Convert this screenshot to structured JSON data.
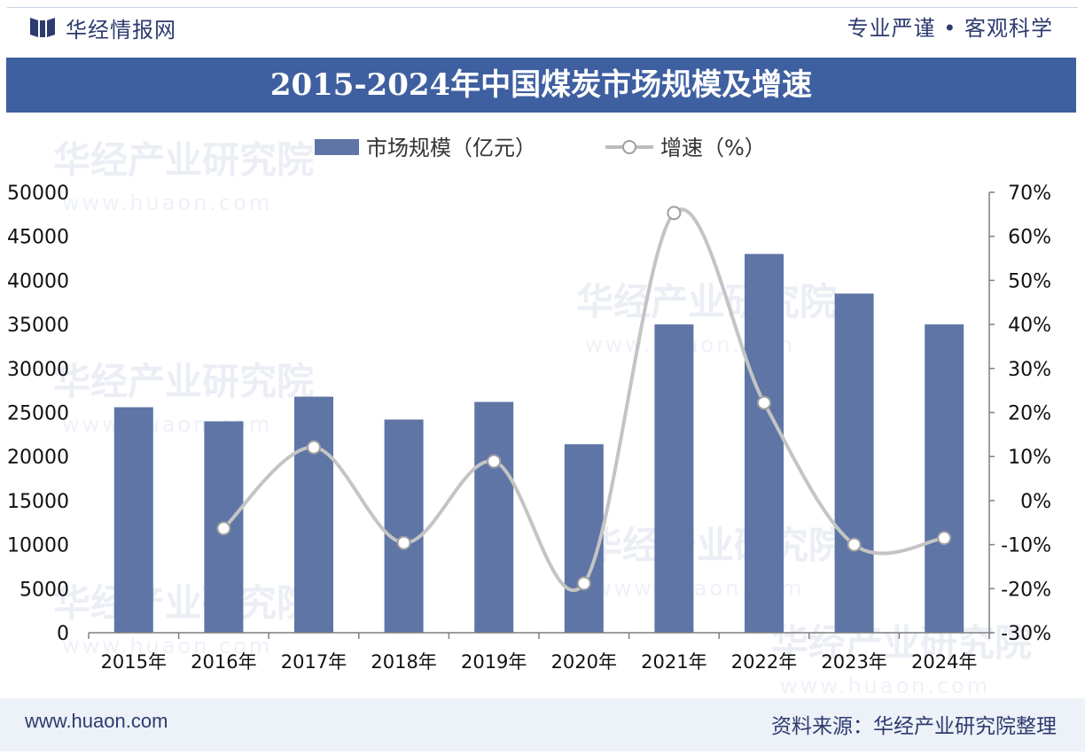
{
  "header": {
    "brand": "华经情报网",
    "slogan": "专业严谨 • 客观科学"
  },
  "title": "2015-2024年中国煤炭市场规模及增速",
  "watermark": {
    "cn": "华经产业研究院",
    "url": "www.huaon.com"
  },
  "footer": {
    "site": "www.huaon.com",
    "source": "资料来源：华经产业研究院整理"
  },
  "colors": {
    "bar": "#5e75a6",
    "line": "#c4c4c4",
    "title_bg": "#3e5fa0",
    "text": "#2d3b6e"
  },
  "chart_data": {
    "type": "bar+line",
    "categories": [
      "2015年",
      "2016年",
      "2017年",
      "2018年",
      "2019年",
      "2020年",
      "2021年",
      "2022年",
      "2023年",
      "2024年"
    ],
    "series": [
      {
        "name": "市场规模（亿元）",
        "type": "bar",
        "axis": "left",
        "values": [
          25600,
          24000,
          26800,
          24200,
          26200,
          21400,
          35000,
          43000,
          38500,
          35000
        ]
      },
      {
        "name": "增速（%）",
        "type": "line",
        "axis": "right",
        "values": [
          null,
          -6.3,
          12.1,
          -9.6,
          8.9,
          -18.8,
          65.3,
          22.2,
          -10.0,
          -8.5
        ]
      }
    ],
    "y_left": {
      "min": 0,
      "max": 50000,
      "ticks": [
        "0",
        "5000",
        "10000",
        "15000",
        "20000",
        "25000",
        "30000",
        "35000",
        "40000",
        "45000",
        "50000"
      ]
    },
    "y_right": {
      "min": -30,
      "max": 70,
      "ticks": [
        "-30%",
        "-20%",
        "-10%",
        "0%",
        "10%",
        "20%",
        "30%",
        "40%",
        "50%",
        "60%",
        "70%"
      ]
    },
    "legend_position": "top"
  }
}
